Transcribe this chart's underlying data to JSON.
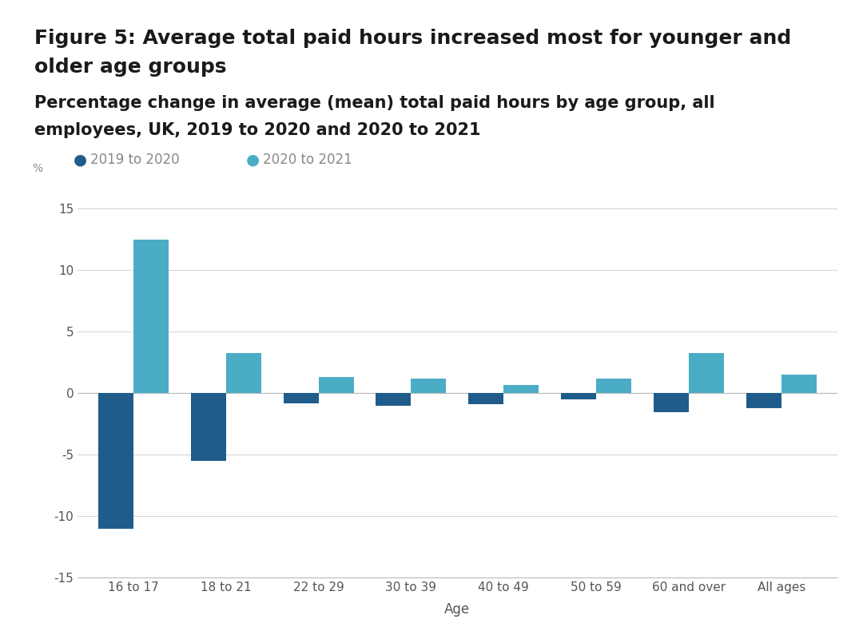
{
  "title_line1": "Figure 5: Average total paid hours increased most for younger and",
  "title_line2": "older age groups",
  "subtitle_line1": "Percentage change in average (mean) total paid hours by age group, all",
  "subtitle_line2": "employees, UK, 2019 to 2020 and 2020 to 2021",
  "categories": [
    "16 to 17",
    "18 to 21",
    "22 to 29",
    "30 to 39",
    "40 to 49",
    "50 to 59",
    "60 and over",
    "All ages"
  ],
  "series1_label": "2019 to 2020",
  "series2_label": "2020 to 2021",
  "series1_values": [
    -11.0,
    -5.5,
    -0.8,
    -1.0,
    -0.9,
    -0.5,
    -1.5,
    -1.2
  ],
  "series2_values": [
    12.5,
    3.3,
    1.3,
    1.2,
    0.7,
    1.2,
    3.3,
    1.5
  ],
  "series1_color": "#1f5c8b",
  "series2_color": "#4bacc6",
  "ylim": [
    -15,
    17
  ],
  "yticks": [
    -15,
    -10,
    -5,
    0,
    5,
    10,
    15
  ],
  "percent_label": "%",
  "xlabel": "Age",
  "background_color": "#ffffff",
  "grid_color": "#d5d5d5",
  "bar_width": 0.38,
  "title_fontsize": 18,
  "subtitle_fontsize": 15,
  "legend_fontsize": 12,
  "tick_fontsize": 11,
  "xlabel_fontsize": 12
}
